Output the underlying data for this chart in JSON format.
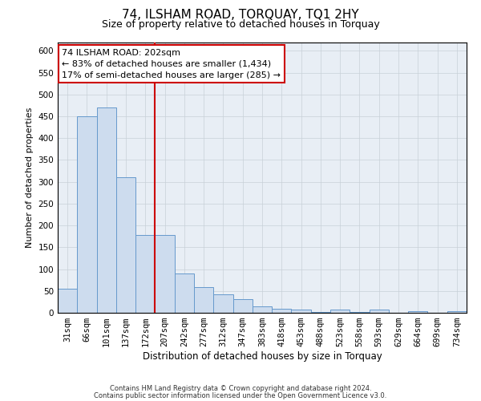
{
  "title": "74, ILSHAM ROAD, TORQUAY, TQ1 2HY",
  "subtitle": "Size of property relative to detached houses in Torquay",
  "xlabel": "Distribution of detached houses by size in Torquay",
  "ylabel": "Number of detached properties",
  "bar_labels": [
    "31sqm",
    "66sqm",
    "101sqm",
    "137sqm",
    "172sqm",
    "207sqm",
    "242sqm",
    "277sqm",
    "312sqm",
    "347sqm",
    "383sqm",
    "418sqm",
    "453sqm",
    "488sqm",
    "523sqm",
    "558sqm",
    "593sqm",
    "629sqm",
    "664sqm",
    "699sqm",
    "734sqm"
  ],
  "bar_values": [
    55,
    450,
    470,
    310,
    178,
    178,
    90,
    58,
    42,
    32,
    15,
    10,
    7,
    2,
    8,
    2,
    8,
    0,
    3,
    0,
    3
  ],
  "bar_color": "#cddcee",
  "bar_edge_color": "#6699cc",
  "vline_index": 5,
  "vline_color": "#cc0000",
  "annotation_line1": "74 ILSHAM ROAD: 202sqm",
  "annotation_line2": "← 83% of detached houses are smaller (1,434)",
  "annotation_line3": "17% of semi-detached houses are larger (285) →",
  "annotation_box_color": "#ffffff",
  "annotation_box_edge_color": "#cc0000",
  "ylim": [
    0,
    620
  ],
  "yticks": [
    0,
    50,
    100,
    150,
    200,
    250,
    300,
    350,
    400,
    450,
    500,
    550,
    600
  ],
  "footnote1": "Contains HM Land Registry data © Crown copyright and database right 2024.",
  "footnote2": "Contains public sector information licensed under the Open Government Licence v3.0.",
  "background_color": "#ffffff",
  "plot_bg_color": "#e8eef5",
  "grid_color": "#c8d0d8",
  "title_fontsize": 11,
  "subtitle_fontsize": 9,
  "xlabel_fontsize": 8.5,
  "ylabel_fontsize": 8,
  "tick_fontsize": 7.5,
  "annotation_fontsize": 8,
  "footnote_fontsize": 6
}
